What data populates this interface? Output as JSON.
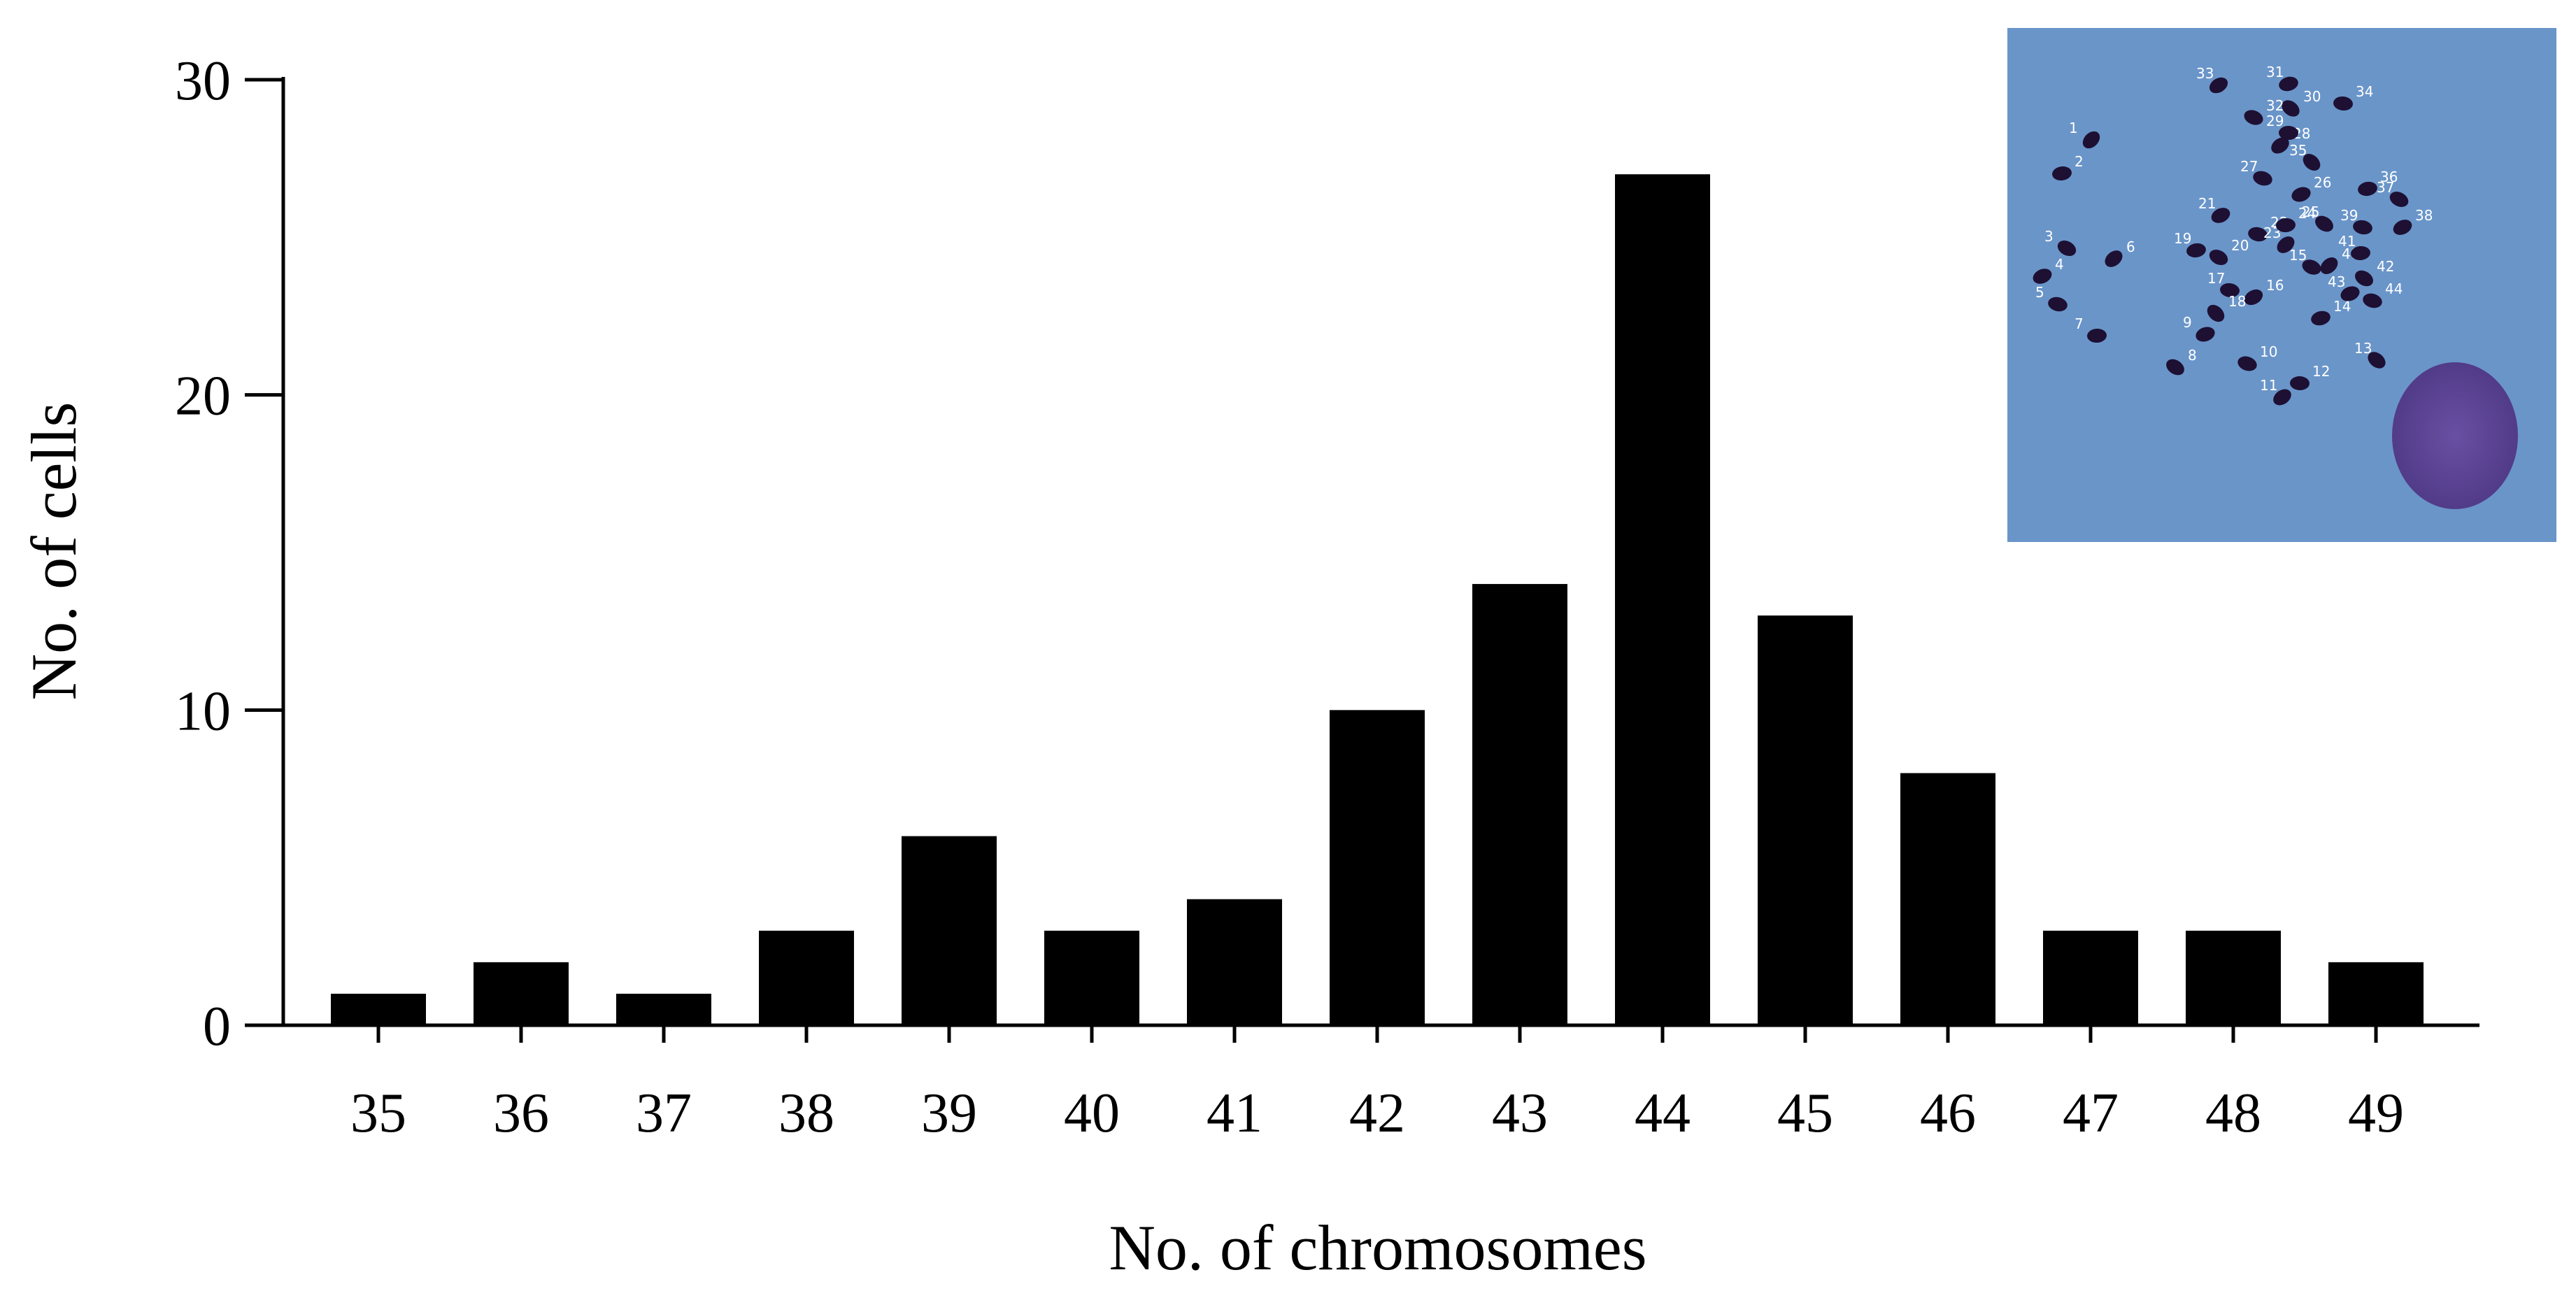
{
  "chart_data": {
    "type": "bar",
    "categories": [
      "35",
      "36",
      "37",
      "38",
      "39",
      "40",
      "41",
      "42",
      "43",
      "44",
      "45",
      "46",
      "47",
      "48",
      "49"
    ],
    "values": [
      1,
      2,
      1,
      3,
      6,
      3,
      4,
      10,
      14,
      27,
      13,
      8,
      3,
      3,
      2
    ],
    "xlabel": "No. of chromosomes",
    "ylabel": "No. of cells",
    "ylim": [
      0,
      30
    ],
    "yticks": [
      0,
      10,
      20,
      30
    ],
    "grid": false,
    "legend": "none",
    "bar_color": "#000000"
  },
  "inset": {
    "description_type": "metaphase-spread-micrograph",
    "background_color": "#6a95c9",
    "chromosome_color": "#1e1033",
    "nucleus_color": "#5a3f90",
    "chromosome_labels": [
      "1",
      "2",
      "3",
      "4",
      "5",
      "6",
      "7",
      "8",
      "9",
      "10",
      "11",
      "12",
      "13",
      "14",
      "15",
      "16",
      "17",
      "18",
      "19",
      "20",
      "21",
      "22",
      "23",
      "24",
      "25",
      "26",
      "27",
      "28",
      "29",
      "30",
      "31",
      "32",
      "33",
      "34",
      "35",
      "36",
      "37",
      "38",
      "39",
      "40",
      "41",
      "42",
      "43",
      "44"
    ]
  }
}
